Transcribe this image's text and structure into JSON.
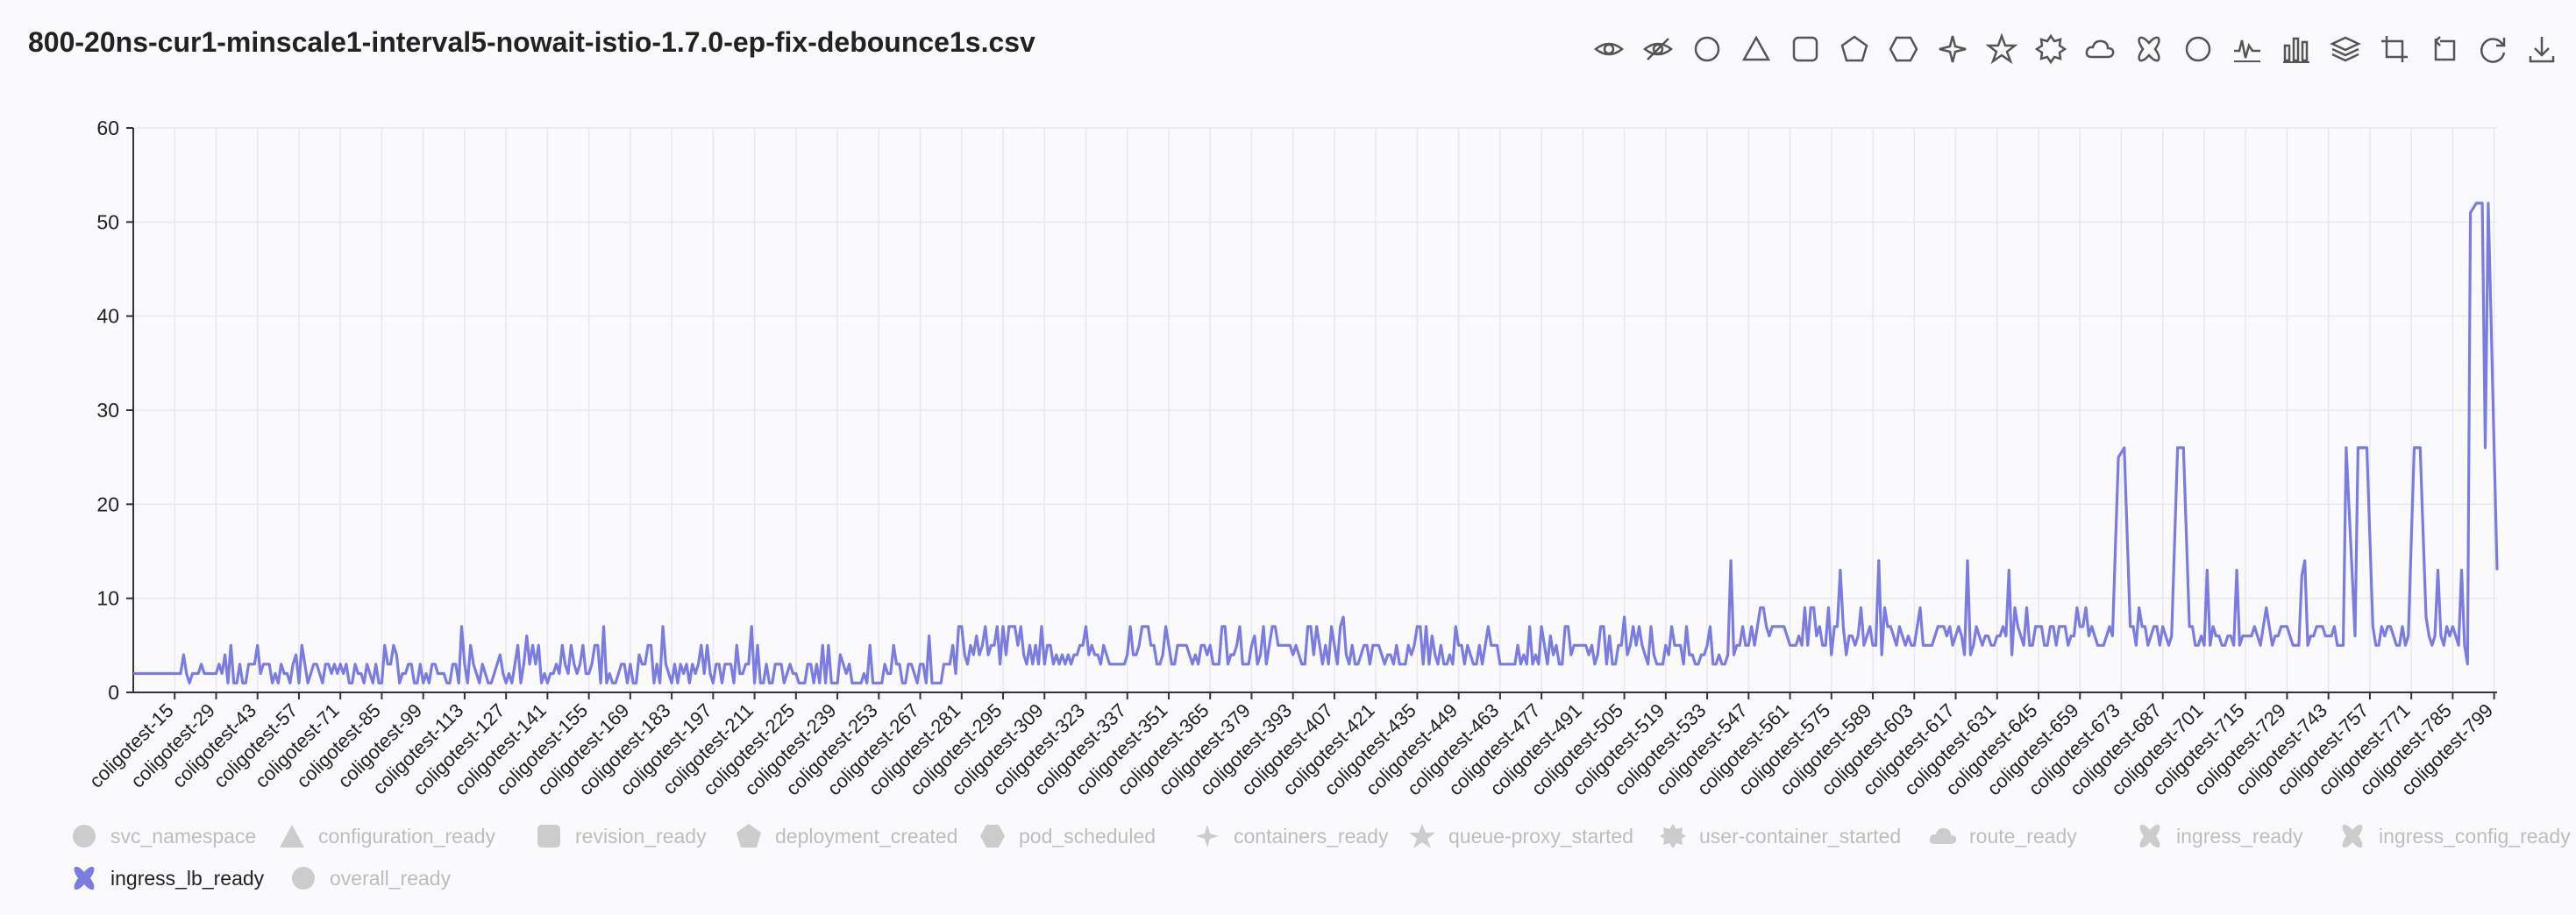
{
  "title": "800-20ns-cur1-minscale1-interval5-nowait-istio-1.7.0-ep-fix-debounce1s.csv",
  "toolbar": {
    "icons": [
      "eye-icon",
      "eye-off-icon",
      "circle-icon",
      "triangle-icon",
      "rounded-square-icon",
      "pentagon-icon",
      "hexagon-icon",
      "four-point-star-icon",
      "star-icon",
      "badge-icon",
      "cloud-icon",
      "cross-icon",
      "circle-outline-icon",
      "line-chart-icon",
      "bar-chart-icon",
      "layers-icon",
      "crop-icon",
      "reorder-icon",
      "refresh-icon",
      "download-icon"
    ]
  },
  "colors": {
    "accent": "#7b7be0",
    "legend_inactive": "#cccccc",
    "legend_text_inactive": "#bdbdbd",
    "axis": "#333333",
    "grid": "#e8e8ee"
  },
  "legend": [
    {
      "label": "svc_namespace",
      "symbol": "circle",
      "active": false
    },
    {
      "label": "configuration_ready",
      "symbol": "triangle",
      "active": false
    },
    {
      "label": "revision_ready",
      "symbol": "square",
      "active": false
    },
    {
      "label": "deployment_created",
      "symbol": "pentagon",
      "active": false
    },
    {
      "label": "pod_scheduled",
      "symbol": "hexagon",
      "active": false
    },
    {
      "label": "containers_ready",
      "symbol": "sparkle",
      "active": false
    },
    {
      "label": "queue-proxy_started",
      "symbol": "star",
      "active": false
    },
    {
      "label": "user-container_started",
      "symbol": "badge",
      "active": false
    },
    {
      "label": "route_ready",
      "symbol": "cloud",
      "active": false
    },
    {
      "label": "ingress_ready",
      "symbol": "cross",
      "active": false
    },
    {
      "label": "ingress_config_ready",
      "symbol": "cross",
      "active": false
    },
    {
      "label": "ingress_lb_ready",
      "symbol": "cross",
      "active": true
    },
    {
      "label": "overall_ready",
      "symbol": "circle",
      "active": false
    }
  ],
  "chart_data": {
    "type": "line",
    "title": "",
    "xlabel": "",
    "ylabel": "",
    "ylim": [
      0,
      60
    ],
    "yticks": [
      0,
      10,
      20,
      30,
      40,
      50,
      60
    ],
    "grid": true,
    "legend_position": "bottom",
    "x_prefix": "coligotest-",
    "x_range": [
      1,
      800
    ],
    "x_tick_labels": [
      "coligotest-15",
      "coligotest-29",
      "coligotest-43",
      "coligotest-57",
      "coligotest-71",
      "coligotest-85",
      "coligotest-99",
      "coligotest-113",
      "coligotest-127",
      "coligotest-141",
      "coligotest-155",
      "coligotest-169",
      "coligotest-183",
      "coligotest-197",
      "coligotest-211",
      "coligotest-225",
      "coligotest-239",
      "coligotest-253",
      "coligotest-267",
      "coligotest-281",
      "coligotest-295",
      "coligotest-309",
      "coligotest-323",
      "coligotest-337",
      "coligotest-351",
      "coligotest-365",
      "coligotest-379",
      "coligotest-393",
      "coligotest-407",
      "coligotest-421",
      "coligotest-435",
      "coligotest-449",
      "coligotest-463",
      "coligotest-477",
      "coligotest-491",
      "coligotest-505",
      "coligotest-519",
      "coligotest-533",
      "coligotest-547",
      "coligotest-561",
      "coligotest-575",
      "coligotest-589",
      "coligotest-603",
      "coligotest-617",
      "coligotest-631",
      "coligotest-645",
      "coligotest-659",
      "coligotest-673",
      "coligotest-687",
      "coligotest-701",
      "coligotest-715",
      "coligotest-729",
      "coligotest-743",
      "coligotest-757",
      "coligotest-771",
      "coligotest-785",
      "coligotest-799"
    ],
    "series": [
      {
        "name": "ingress_lb_ready",
        "color": "#7b7be0",
        "knots": [
          [
            1,
            2
          ],
          [
            12,
            2
          ],
          [
            16,
            2
          ],
          [
            18,
            4
          ],
          [
            20,
            1
          ],
          [
            24,
            3
          ],
          [
            28,
            2
          ],
          [
            32,
            4
          ],
          [
            36,
            1
          ],
          [
            40,
            3
          ],
          [
            44,
            2
          ],
          [
            52,
            2
          ],
          [
            56,
            4
          ],
          [
            62,
            3
          ],
          [
            70,
            2
          ],
          [
            80,
            3
          ],
          [
            90,
            4
          ],
          [
            100,
            2
          ],
          [
            110,
            3
          ],
          [
            112,
            7
          ],
          [
            120,
            2
          ],
          [
            125,
            4
          ],
          [
            130,
            3
          ],
          [
            134,
            6
          ],
          [
            140,
            2
          ],
          [
            150,
            3
          ],
          [
            160,
            7
          ],
          [
            165,
            2
          ],
          [
            172,
            4
          ],
          [
            180,
            7
          ],
          [
            188,
            3
          ],
          [
            196,
            2
          ],
          [
            210,
            7
          ],
          [
            215,
            3
          ],
          [
            225,
            2
          ],
          [
            240,
            4
          ],
          [
            255,
            3
          ],
          [
            270,
            6
          ],
          [
            276,
            3
          ],
          [
            280,
            7
          ],
          [
            286,
            6
          ],
          [
            290,
            4
          ],
          [
            300,
            5
          ],
          [
            320,
            4
          ],
          [
            340,
            4
          ],
          [
            360,
            4
          ],
          [
            380,
            6
          ],
          [
            400,
            4
          ],
          [
            410,
            8
          ],
          [
            420,
            5
          ],
          [
            440,
            6
          ],
          [
            460,
            5
          ],
          [
            480,
            6
          ],
          [
            500,
            6
          ],
          [
            505,
            8
          ],
          [
            520,
            4
          ],
          [
            540,
            4
          ],
          [
            541,
            14
          ],
          [
            542,
            4
          ],
          [
            560,
            6
          ],
          [
            575,
            4
          ],
          [
            578,
            13
          ],
          [
            580,
            4
          ],
          [
            590,
            5
          ],
          [
            591,
            14
          ],
          [
            592,
            4
          ],
          [
            610,
            6
          ],
          [
            620,
            4
          ],
          [
            621,
            14
          ],
          [
            622,
            4
          ],
          [
            634,
            6
          ],
          [
            635,
            13
          ],
          [
            636,
            4
          ],
          [
            650,
            7
          ],
          [
            670,
            6
          ],
          [
            672,
            25
          ],
          [
            674,
            26
          ],
          [
            676,
            7
          ],
          [
            690,
            6
          ],
          [
            692,
            26
          ],
          [
            694,
            26
          ],
          [
            696,
            7
          ],
          [
            700,
            6
          ],
          [
            702,
            13
          ],
          [
            704,
            7
          ],
          [
            710,
            6
          ],
          [
            712,
            13
          ],
          [
            714,
            6
          ],
          [
            730,
            6
          ],
          [
            735,
            14
          ],
          [
            737,
            6
          ],
          [
            748,
            5
          ],
          [
            749,
            26
          ],
          [
            752,
            6
          ],
          [
            753,
            26
          ],
          [
            756,
            26
          ],
          [
            758,
            7
          ],
          [
            770,
            6
          ],
          [
            772,
            26
          ],
          [
            774,
            26
          ],
          [
            776,
            8
          ],
          [
            780,
            13
          ],
          [
            782,
            5
          ],
          [
            785,
            7
          ],
          [
            788,
            13
          ],
          [
            790,
            3
          ],
          [
            791,
            51
          ],
          [
            793,
            52
          ],
          [
            795,
            52
          ],
          [
            796,
            26
          ],
          [
            797,
            52
          ],
          [
            800,
            13
          ]
        ]
      }
    ]
  }
}
